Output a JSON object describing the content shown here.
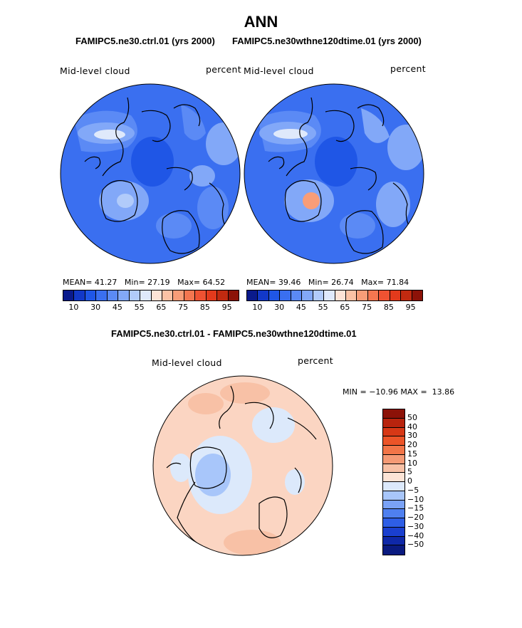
{
  "chart_data": [
    {
      "type": "heatmap",
      "title": "FAMIPC5.ne30.ctrl.01 (yrs 2000)",
      "field": "Mid-level cloud",
      "units": "percent",
      "stats": {
        "mean_label": "MEAN=",
        "mean": "41.27",
        "min_label": "Min=",
        "min": "27.19",
        "max_label": "Max=",
        "max": "64.52"
      },
      "colorbar_ticks": [
        "10",
        "30",
        "45",
        "55",
        "65",
        "75",
        "85",
        "95"
      ],
      "colorbar_colors": [
        "#0a1a8c",
        "#1238c8",
        "#1f56e6",
        "#3a6ff0",
        "#5b8af5",
        "#82a8f8",
        "#b1cbfa",
        "#dfe9fb",
        "#fde3d6",
        "#fbc2a5",
        "#f89d78",
        "#f47650",
        "#ef5232",
        "#e33a1c",
        "#c12a10",
        "#8c1208"
      ]
    },
    {
      "type": "heatmap",
      "title": "FAMIPC5.ne30wthne120dtime.01 (yrs 2000)",
      "field": "Mid-level cloud",
      "units": "percent",
      "stats": {
        "mean_label": "MEAN=",
        "mean": "39.46",
        "min_label": "Min=",
        "min": "26.74",
        "max_label": "Max=",
        "max": "71.84"
      },
      "colorbar_ticks": [
        "10",
        "30",
        "45",
        "55",
        "65",
        "75",
        "85",
        "95"
      ],
      "colorbar_colors": [
        "#0a1a8c",
        "#1238c8",
        "#1f56e6",
        "#3a6ff0",
        "#5b8af5",
        "#82a8f8",
        "#b1cbfa",
        "#dfe9fb",
        "#fde3d6",
        "#fbc2a5",
        "#f89d78",
        "#f47650",
        "#ef5232",
        "#e33a1c",
        "#c12a10",
        "#8c1208"
      ]
    },
    {
      "type": "heatmap",
      "title": "FAMIPC5.ne30.ctrl.01 - FAMIPC5.ne30wthne120dtime.01",
      "field": "Mid-level cloud",
      "units": "percent",
      "stats": {
        "min_label": "MIN =",
        "min": "−10.96",
        "max_label": "MAX =",
        "max": "13.86"
      },
      "colorbar_ticks": [
        "50",
        "40",
        "30",
        "20",
        "15",
        "10",
        "5",
        "0",
        "−5",
        "−10",
        "−15",
        "−20",
        "−30",
        "−40",
        "−50"
      ],
      "colorbar_colors": [
        "#8c1208",
        "#b8240e",
        "#d73816",
        "#ec5428",
        "#f27548",
        "#f59a75",
        "#f8c1a6",
        "#fde4d6",
        "#dce9fb",
        "#a8c6fa",
        "#7aa2f6",
        "#4f80f0",
        "#2e5ee6",
        "#1a3fcf",
        "#0f28a8",
        "#0a1a80"
      ]
    }
  ],
  "page": {
    "title": "ANN",
    "diff_title": "FAMIPC5.ne30.ctrl.01 - FAMIPC5.ne30wthne120dtime.01"
  }
}
